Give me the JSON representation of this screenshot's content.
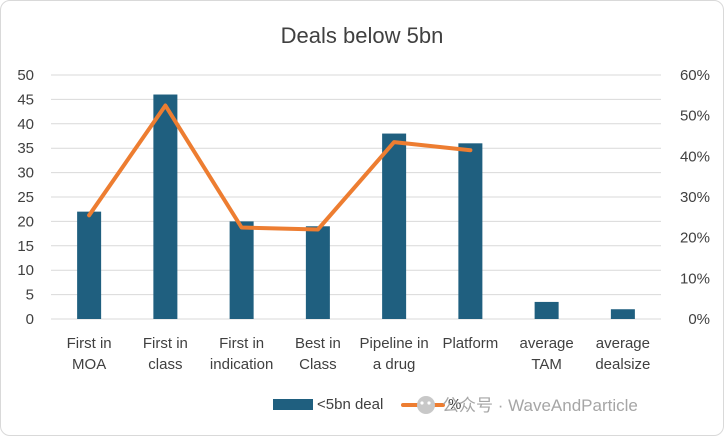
{
  "chart_data": {
    "type": "bar",
    "title": "Deals below 5bn",
    "categories": [
      [
        "First in",
        "MOA"
      ],
      [
        "First in",
        "class"
      ],
      [
        "First in",
        "indication"
      ],
      [
        "Best in",
        "Class"
      ],
      [
        "Pipeline in",
        "a drug"
      ],
      [
        "Platform"
      ],
      [
        "average",
        "TAM"
      ],
      [
        "average",
        "dealsize"
      ]
    ],
    "series": [
      {
        "name": "<5bn deal",
        "type": "bar",
        "axis": "left",
        "color": "#1f5f7f",
        "values": [
          22,
          46,
          20,
          19,
          38,
          36,
          3.5,
          2
        ]
      },
      {
        "name": "%",
        "type": "line",
        "axis": "right",
        "color": "#ed7d31",
        "values": [
          25.5,
          52.5,
          22.5,
          22,
          43.5,
          41.5,
          null,
          null
        ]
      }
    ],
    "y_left": {
      "min": 0,
      "max": 50,
      "step": 5,
      "ticks": [
        "0",
        "5",
        "10",
        "15",
        "20",
        "25",
        "30",
        "35",
        "40",
        "45",
        "50"
      ]
    },
    "y_right": {
      "min": 0,
      "max": 60,
      "step": 10,
      "ticks": [
        "0%",
        "10%",
        "20%",
        "30%",
        "40%",
        "50%",
        "60%"
      ]
    },
    "grid": true,
    "legend_position": "bottom"
  },
  "watermark": "公众号 · WaveAndParticle"
}
